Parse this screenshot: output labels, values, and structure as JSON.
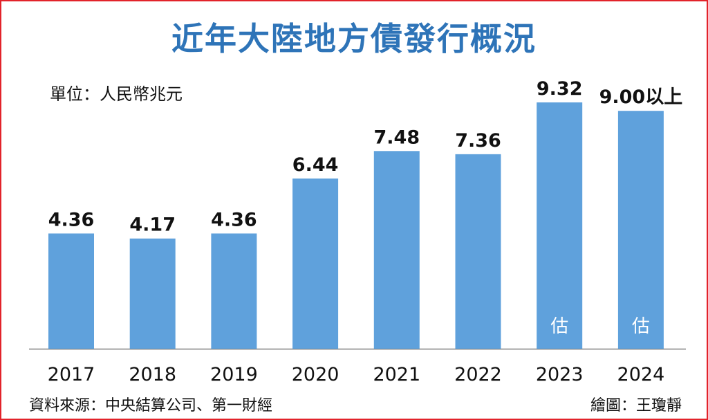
{
  "title": "近年大陸地方債發行概況",
  "unit_label": "單位：人民幣兆元",
  "source": "資料來源：中央結算公司、第一財經",
  "credit": "繪圖：王瓊靜",
  "colors": {
    "bar": "#5fa1dc",
    "title": "#2e74b8",
    "frame": "#e2232a",
    "axis": "#808080",
    "text": "#111111"
  },
  "chart_data": {
    "type": "bar",
    "title": "近年大陸地方債發行概況",
    "xlabel": "",
    "ylabel": "",
    "unit": "人民幣兆元",
    "categories": [
      "2017",
      "2018",
      "2019",
      "2020",
      "2021",
      "2022",
      "2023",
      "2024"
    ],
    "values": [
      4.36,
      4.17,
      4.36,
      6.44,
      7.48,
      7.36,
      9.32,
      9.0
    ],
    "value_labels": [
      "4.36",
      "4.17",
      "4.36",
      "6.44",
      "7.48",
      "7.36",
      "9.32",
      "9.00以上"
    ],
    "annotations": [
      "",
      "",
      "",
      "",
      "",
      "",
      "估",
      "估"
    ],
    "ylim": [
      0,
      9.32
    ],
    "grid": false,
    "legend": "none"
  }
}
